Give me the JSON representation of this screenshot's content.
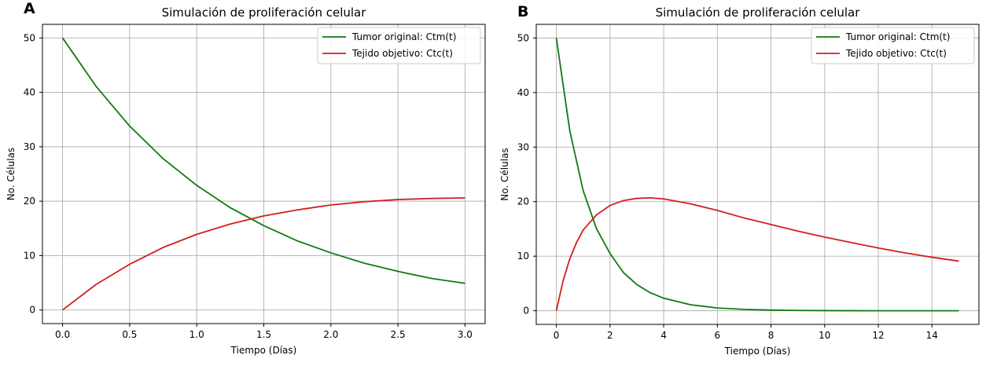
{
  "chart_data": [
    {
      "panel_label": "A",
      "type": "line",
      "title": "Simulación de proliferación celular",
      "xlabel": "Tiempo (Días)",
      "ylabel": "No. Células",
      "xlim": [
        -0.15,
        3.15
      ],
      "ylim": [
        -2.5,
        52.5
      ],
      "xticks": [
        0.0,
        0.5,
        1.0,
        1.5,
        2.0,
        2.5,
        3.0
      ],
      "xtick_labels": [
        "0.0",
        "0.5",
        "1.0",
        "1.5",
        "2.0",
        "2.5",
        "3.0"
      ],
      "yticks": [
        0,
        10,
        20,
        30,
        40,
        50
      ],
      "ytick_labels": [
        "0",
        "10",
        "20",
        "30",
        "40",
        "50"
      ],
      "grid": true,
      "legend_position": "top-right",
      "series": [
        {
          "name": "Tumor original: Ctm(t)",
          "color": "#117a11",
          "x": [
            0,
            0.25,
            0.5,
            0.75,
            1.0,
            1.25,
            1.5,
            1.75,
            2.0,
            2.25,
            2.5,
            2.75,
            3.0
          ],
          "y": [
            50.0,
            41.1,
            33.8,
            27.8,
            22.9,
            18.8,
            15.5,
            12.7,
            10.5,
            8.6,
            7.1,
            5.8,
            4.9
          ]
        },
        {
          "name": "Tejido objetivo: Ctc(t)",
          "color": "#d11f1f",
          "x": [
            0,
            0.25,
            0.5,
            0.75,
            1.0,
            1.25,
            1.5,
            1.75,
            2.0,
            2.25,
            2.5,
            2.75,
            3.0
          ],
          "y": [
            0.0,
            4.7,
            8.4,
            11.5,
            13.9,
            15.8,
            17.3,
            18.4,
            19.3,
            19.9,
            20.3,
            20.5,
            20.6
          ]
        }
      ]
    },
    {
      "panel_label": "B",
      "type": "line",
      "title": "Simulación de proliferación celular",
      "xlabel": "Tiempo (Días)",
      "ylabel": "No. Células",
      "xlim": [
        -0.75,
        15.75
      ],
      "ylim": [
        -2.5,
        52.5
      ],
      "xticks": [
        0,
        2,
        4,
        6,
        8,
        10,
        12,
        14
      ],
      "xtick_labels": [
        "0",
        "2",
        "4",
        "6",
        "8",
        "10",
        "12",
        "14"
      ],
      "yticks": [
        0,
        10,
        20,
        30,
        40,
        50
      ],
      "ytick_labels": [
        "0",
        "10",
        "20",
        "30",
        "40",
        "50"
      ],
      "grid": true,
      "legend_position": "top-right",
      "series": [
        {
          "name": "Tumor original: Ctm(t)",
          "color": "#117a11",
          "x": [
            0,
            0.5,
            1,
            1.5,
            2,
            2.5,
            3,
            3.5,
            4,
            5,
            6,
            7,
            8,
            9,
            10,
            11,
            12,
            13,
            14,
            15
          ],
          "y": [
            50.0,
            33.0,
            22.0,
            15.0,
            10.5,
            7.0,
            4.8,
            3.3,
            2.3,
            1.1,
            0.5,
            0.25,
            0.12,
            0.06,
            0.03,
            0.01,
            0.0,
            0.0,
            0.0,
            0.0
          ]
        },
        {
          "name": "Tejido objetivo: Ctc(t)",
          "color": "#d11f1f",
          "x": [
            0,
            0.25,
            0.5,
            0.75,
            1,
            1.5,
            2,
            2.5,
            3,
            3.5,
            4,
            5,
            6,
            7,
            8,
            9,
            10,
            11,
            12,
            13,
            14,
            15
          ],
          "y": [
            0.0,
            5.5,
            9.5,
            12.5,
            14.8,
            17.6,
            19.3,
            20.2,
            20.6,
            20.7,
            20.5,
            19.6,
            18.4,
            17.0,
            15.8,
            14.6,
            13.5,
            12.5,
            11.5,
            10.6,
            9.8,
            9.1
          ]
        }
      ]
    }
  ]
}
